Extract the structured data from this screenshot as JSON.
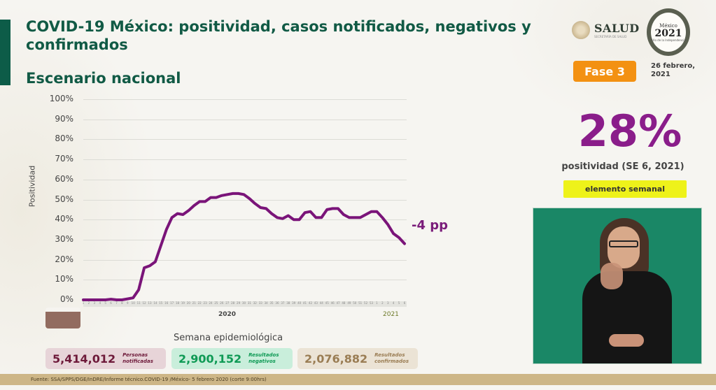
{
  "header": {
    "title": "COVID-19 México: positividad, casos notificados, negativos y confirmados",
    "subtitle": "Escenario nacional"
  },
  "logos": {
    "salud": "SALUD",
    "salud_sub": "SECRETARÍA DE SALUD",
    "mexico2021_top": "México",
    "mexico2021_year": "2021",
    "mexico2021_sub": "Año de la Independencia"
  },
  "badges": {
    "phase": "Fase 3",
    "date": "26 febrero, 2021",
    "phase_color": "#f39112"
  },
  "kpi": {
    "value": "28%",
    "label": "positividad (SE 6, 2021)",
    "tag": "elemento semanal",
    "color": "#8a1d8a",
    "tag_color": "#eef21a"
  },
  "chart": {
    "ylabel": "Positividad",
    "xlabel": "Semana epidemiológica",
    "yticks": [
      "100%",
      "90%",
      "80%",
      "70%",
      "60%",
      "50%",
      "40%",
      "30%",
      "20%",
      "10%",
      "0%"
    ],
    "year_2020": "2020",
    "year_2021": "2021",
    "annotation": "-4 pp",
    "line_color": "#7a1479"
  },
  "chart_data": {
    "type": "line",
    "title": "Escenario nacional",
    "xlabel": "Semana epidemiológica",
    "ylabel": "Positividad",
    "ylim": [
      0,
      100
    ],
    "yunit": "%",
    "grid": true,
    "legend": null,
    "annotations": [
      "-4 pp"
    ],
    "categories": [
      "2020-1",
      "2020-2",
      "2020-3",
      "2020-4",
      "2020-5",
      "2020-6",
      "2020-7",
      "2020-8",
      "2020-9",
      "2020-10",
      "2020-11",
      "2020-12",
      "2020-13",
      "2020-14",
      "2020-15",
      "2020-16",
      "2020-17",
      "2020-18",
      "2020-19",
      "2020-20",
      "2020-21",
      "2020-22",
      "2020-23",
      "2020-24",
      "2020-25",
      "2020-26",
      "2020-27",
      "2020-28",
      "2020-29",
      "2020-30",
      "2020-31",
      "2020-32",
      "2020-33",
      "2020-34",
      "2020-35",
      "2020-36",
      "2020-37",
      "2020-38",
      "2020-39",
      "2020-40",
      "2020-41",
      "2020-42",
      "2020-43",
      "2020-44",
      "2020-45",
      "2020-46",
      "2020-47",
      "2020-48",
      "2020-49",
      "2020-50",
      "2020-51",
      "2020-52",
      "2020-53",
      "2021-1",
      "2021-2",
      "2021-3",
      "2021-4",
      "2021-5",
      "2021-6"
    ],
    "series": [
      {
        "name": "Positividad",
        "values": [
          0,
          0,
          0,
          0,
          0,
          0.3,
          0,
          0,
          0.5,
          1,
          5,
          16,
          17,
          19,
          27,
          35,
          41,
          43,
          42.5,
          44.5,
          47,
          49,
          49,
          51,
          51,
          52,
          52.5,
          53,
          53,
          52.5,
          50.5,
          48,
          46,
          45.5,
          43,
          41,
          40.5,
          42,
          40,
          40,
          43.5,
          44,
          41,
          41,
          45,
          45.5,
          45.5,
          42.5,
          41,
          41,
          41,
          42.5,
          44,
          44,
          41,
          37.5,
          33,
          31,
          28
        ]
      }
    ]
  },
  "stats": [
    {
      "value": "5,414,012",
      "label_line1": "Personas",
      "label_line2": "notificadas"
    },
    {
      "value": "2,900,152",
      "label_line1": "Resultados",
      "label_line2": "negativos"
    },
    {
      "value": "2,076,882",
      "label_line1": "Resultados",
      "label_line2": "confirmados"
    }
  ],
  "footer": {
    "source": "Fuente: SSA/SPPS/DGE/InDRE/Informe técnico.COVID-19 /México- 5 febrero 2020 (corte 9:00hrs)"
  }
}
